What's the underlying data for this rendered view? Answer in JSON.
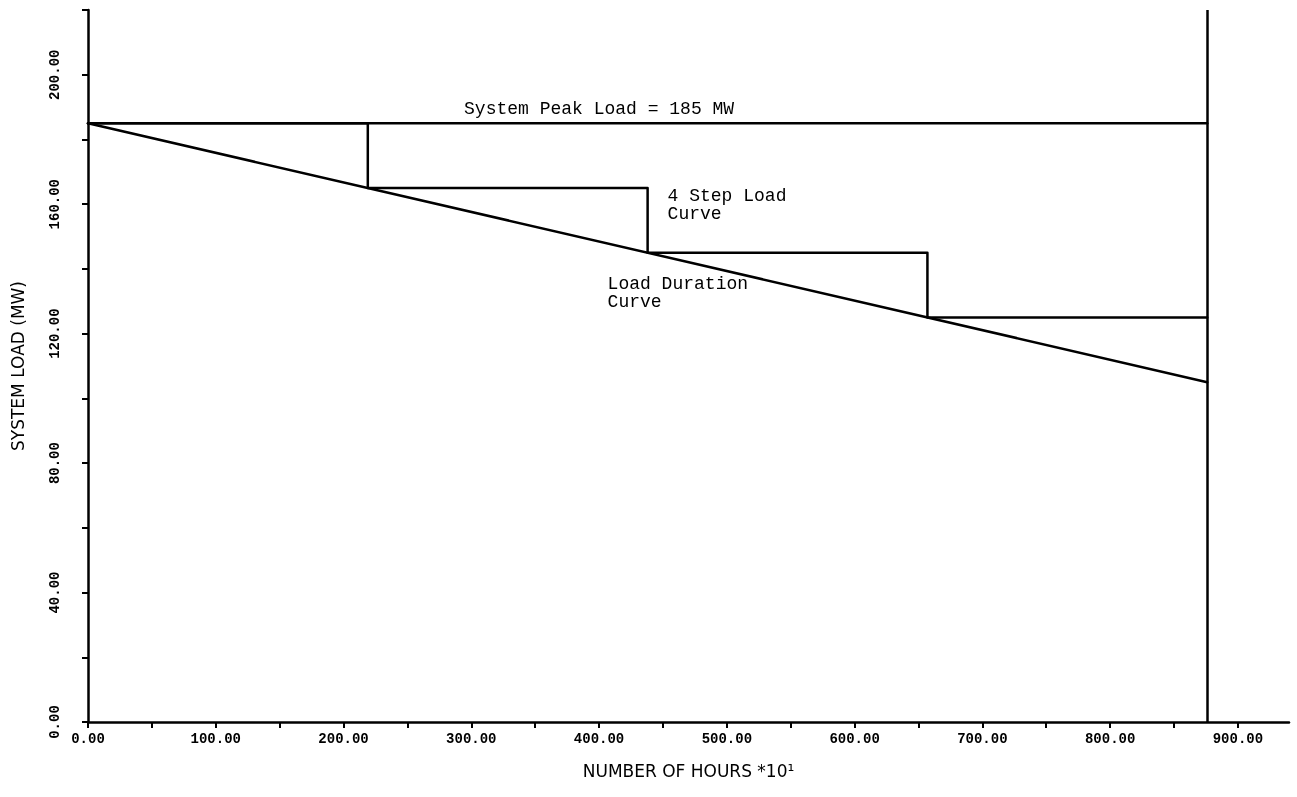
{
  "chart_data": {
    "type": "line",
    "xlabel": "NUMBER OF HOURS *10¹",
    "ylabel": "SYSTEM LOAD (MW)",
    "xlim": [
      0,
      940
    ],
    "ylim": [
      0,
      220
    ],
    "xticks": [
      {
        "value": 0,
        "label": "0.00"
      },
      {
        "value": 50,
        "label": null
      },
      {
        "value": 100,
        "label": "100.00"
      },
      {
        "value": 150,
        "label": null
      },
      {
        "value": 200,
        "label": "200.00"
      },
      {
        "value": 250,
        "label": null
      },
      {
        "value": 300,
        "label": "300.00"
      },
      {
        "value": 350,
        "label": null
      },
      {
        "value": 400,
        "label": "400.00"
      },
      {
        "value": 450,
        "label": null
      },
      {
        "value": 500,
        "label": "500.00"
      },
      {
        "value": 550,
        "label": null
      },
      {
        "value": 600,
        "label": "600.00"
      },
      {
        "value": 650,
        "label": null
      },
      {
        "value": 700,
        "label": "700.00"
      },
      {
        "value": 750,
        "label": null
      },
      {
        "value": 800,
        "label": "800.00"
      },
      {
        "value": 850,
        "label": null
      },
      {
        "value": 900,
        "label": "900.00"
      }
    ],
    "yticks": [
      {
        "value": 0,
        "label": "0.00"
      },
      {
        "value": 20,
        "label": null
      },
      {
        "value": 40,
        "label": "40.00"
      },
      {
        "value": 60,
        "label": null
      },
      {
        "value": 80,
        "label": "80.00"
      },
      {
        "value": 100,
        "label": null
      },
      {
        "value": 120,
        "label": "120.00"
      },
      {
        "value": 140,
        "label": null
      },
      {
        "value": 160,
        "label": "160.00"
      },
      {
        "value": 180,
        "label": null
      },
      {
        "value": 200,
        "label": "200.00"
      },
      {
        "value": 220,
        "label": null
      }
    ],
    "series": [
      {
        "name": "Load Duration Curve",
        "color": "#000000",
        "x": [
          0,
          876
        ],
        "values": [
          185,
          105
        ]
      },
      {
        "type": "step",
        "name": "4 Step Load Curve",
        "color": "#000000",
        "x": [
          0,
          219,
          438,
          657,
          876
        ],
        "values": [
          185,
          165,
          145,
          125,
          125
        ]
      },
      {
        "color": "#000000",
        "x": [
          0,
          876
        ],
        "values": [
          185,
          185
        ]
      }
    ],
    "ref_lines": [
      {
        "axis": "x",
        "value": 876,
        "color": "#000000"
      }
    ],
    "annotations": [
      {
        "text": "System Peak Load = 185 MW",
        "x": 400,
        "y": 185
      }
    ],
    "marker": "none",
    "grid": false,
    "legend": false
  }
}
